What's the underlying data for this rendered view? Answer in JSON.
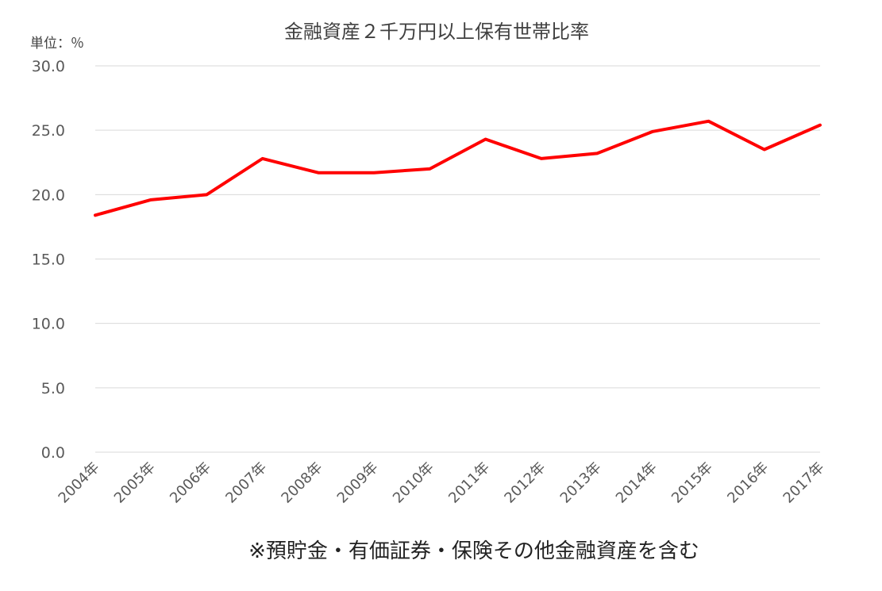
{
  "chart_data": {
    "type": "line",
    "title": "金融資産２千万円以上保有世帯比率",
    "unit_label": "単位：％",
    "xlabel": "",
    "ylabel": "",
    "ylim": [
      0,
      30
    ],
    "yticks": [
      "0.0",
      "5.0",
      "10.0",
      "15.0",
      "20.0",
      "25.0",
      "30.0"
    ],
    "categories": [
      "2004年",
      "2005年",
      "2006年",
      "2007年",
      "2008年",
      "2009年",
      "2010年",
      "2011年",
      "2012年",
      "2013年",
      "2014年",
      "2015年",
      "2016年",
      "2017年"
    ],
    "series": [
      {
        "values": [
          18.4,
          19.6,
          20.0,
          22.8,
          21.7,
          21.7,
          22.0,
          24.3,
          22.8,
          23.2,
          24.9,
          25.7,
          23.5,
          25.4
        ],
        "color": "#ff0000"
      }
    ],
    "grid": true,
    "legend": "none",
    "footnote": "※預貯金・有価証券・保険その他金融資産を含む"
  }
}
